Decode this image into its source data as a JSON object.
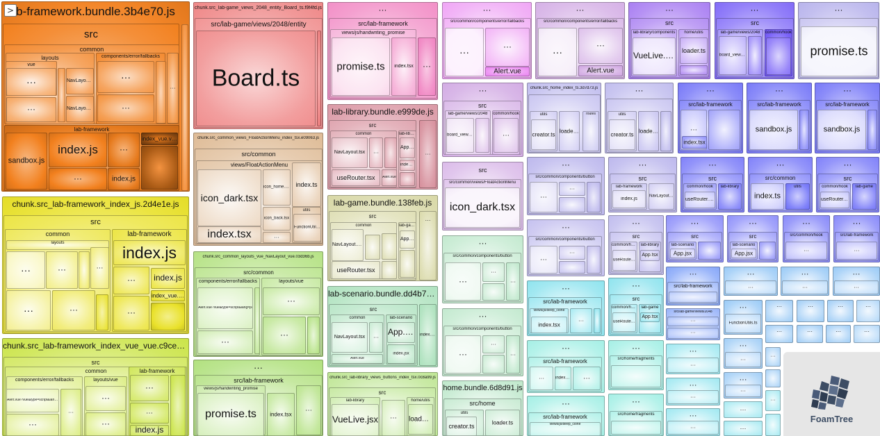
{
  "app": {
    "toggle_icon": "chevron-right-icon",
    "toggle_label": ">"
  },
  "logo": {
    "text": "FoamTree",
    "icon": "foamtree-logo-icon"
  },
  "colors": {
    "orange": "#f2801e",
    "yellow": "#e9e12a",
    "lime": "#c7e23a",
    "salmon": "#ee7e7e",
    "tan": "#dcb68e",
    "green": "#a6dc6c",
    "pink": "#f07fbf",
    "rose": "#d58a98",
    "olive": "#cfcf92",
    "teal": "#9fdcb2",
    "magenta": "#e87af0",
    "lavender": "#c99ade",
    "periwinkle": "#a9a3e8",
    "violet": "#9663ef",
    "indigo": "#6f55f7",
    "blue": "#5a5cf7",
    "azure": "#4a7af5",
    "sky": "#5aa9f0",
    "cyan": "#58d6e6",
    "aqua": "#78e7d8"
  },
  "labels": {
    "fw_bundle": "b-framework.bundle.3b4e70.js",
    "src": "src",
    "common": "common",
    "layouts": "layouts",
    "vue": "vue",
    "components_error_fallbacks": "components/error/fallbacks",
    "navlayout_tsx": "NavLayout.tsx",
    "lab_framework": "lab-framework",
    "sandbox_js": "sandbox.js",
    "index_js": "index.js",
    "index_vue_vue": "index_vue.vue",
    "dots": "···",
    "board_chunk": "chunk.src_lab-game_views_2048_entity_Board_ts.f9f4fd.js",
    "src_lab_game_views_2048_entity": "src/lab-game/views/2048/entity",
    "board_ts": "Board.ts",
    "src_lab_framework": "src/lab-framework",
    "views_js_handwriting_promise": "views/js/handwriting_promise",
    "promise_ts": "promise.ts",
    "index_tsx": "index.tsx",
    "src_common_components_error_fallbacks": "src/common/components/error/fallbacks",
    "alert_vue": "Alert.vue",
    "lab_library_components": "lab-library/components",
    "vuelive_jsx": "VueLive.jsx",
    "home_utils": "home/utils",
    "loader_ts": "loader.ts",
    "lab_game_views_2048": "lab-game/views/2048",
    "board_view_tsx": "board_view.tsx",
    "common_hook": "common/hook",
    "fw_index_chunk": "chunk.src_lab-framework_index_js.2d4e1e.js",
    "fw_index_vue_chunk": "chunk.src_lab-framework_index_vue_vue.c9ce96.js",
    "alert_vue_type": "Alert.vue?vue&type=script&lang=js",
    "layouts_vue": "layouts/vue",
    "float_chunk": "chunk.src_common_views_FloatActionMenu_index_tsx.e09063.js",
    "src_common": "src/common",
    "views_floatactionmenu": "views/FloatActionMenu",
    "icon_dark_tsx": "icon_dark.tsx",
    "icon_home_tsx": "icon_home.tsx",
    "icon_back_tsx": "icon_back.tsx",
    "index_ts": "index.ts",
    "utils": "utils",
    "function_utils": "FunctionUtils.ts",
    "navlayout_chunk": "chunk.src_common_layouts_vue_NavLayout_vue.03d36b.js",
    "src_common_": "src/common",
    "lab_library_bundle": "lab-library.bundle.e999de.js",
    "lab_library": "lab-library",
    "app_tsx": "App.tsx",
    "userouter_tsx": "useRouter.tsx",
    "lab_game_bundle": "lab-game.bundle.138feb.js",
    "lab_game": "lab-game",
    "lab_scenario_bundle": "lab-scenario.bundle.dd4b7b.js",
    "lab_scenario": "lab-scenario",
    "app_jsx": "App.jsx",
    "index_jsx": "index.jsx",
    "buttons_chunk": "chunk.src_lab-library_views_buttons_index_tsx.0c8a99.js",
    "home_bundle": "home.bundle.6d8d91.js",
    "home": "src/home",
    "creator_ts": "creator.ts",
    "src_common_views_floatactionmenu": "src/common/views/FloatActionMenu",
    "src_common_components_button": "src/common/components/button",
    "views_js_deep_clone": "views/js/deep_clone",
    "views_js_deep_clone2": "views/js/deep_clone",
    "src_home_fragments": "src/home/fragments",
    "src_home_chunk": "chunk.src_home_index_ts.3d7d73.js",
    "routes": "routes",
    "functionutils_short": "FunctionUtils.ts",
    "src_common_hook": "src/common/hook",
    "src_lab_scenario": "src/lab-scenario",
    "lab_game_views_2048_small": "src/lab-game/views/2048",
    "lab_scenario_dir": "lab-scenario",
    "src_lab_framework2": "src/lab-framework"
  }
}
